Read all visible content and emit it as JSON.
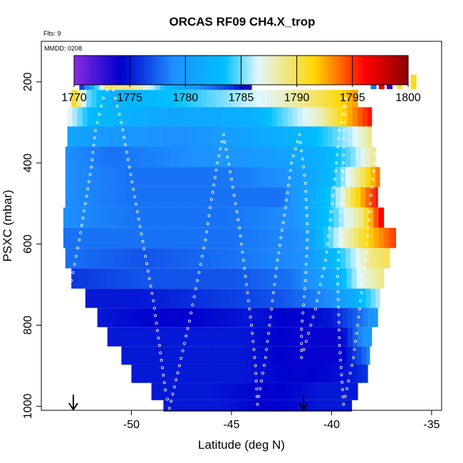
{
  "chart_data": {
    "type": "heatmap",
    "title": "ORCAS RF09 CH4.X_trop",
    "note_flights": "Flts: 9",
    "note_date": "MMDD: 0208",
    "xlabel": "Latitude (deg N)",
    "ylabel": "PSXC (mbar)",
    "xlim": [
      -54.5,
      -34.5
    ],
    "ylim": [
      1010,
      100
    ],
    "x_ticks": [
      -50,
      -45,
      -40,
      -35
    ],
    "x_tick_labels": [
      "-50",
      "-45",
      "-40",
      "-35"
    ],
    "y_ticks": [
      200,
      400,
      600,
      800,
      1000
    ],
    "y_tick_labels": [
      "200",
      "400",
      "600",
      "800",
      "1000"
    ],
    "colorbar": {
      "min": 1770,
      "max": 1800,
      "ticks": [
        1770,
        1775,
        1780,
        1785,
        1790,
        1795,
        1800
      ],
      "tick_labels": [
        "1770",
        "1775",
        "1780",
        "1785",
        "1790",
        "1795",
        "1800"
      ],
      "stops": [
        "#8a2be2",
        "#0000cd",
        "#1e90ff",
        "#00bfff",
        "#e0f7ff",
        "#ffd700",
        "#ff0000",
        "#8b0000"
      ]
    },
    "marker_latitudes": [
      -52.9,
      -41.4
    ],
    "layers": [
      {
        "p": 200,
        "segments": [
          [
            -52.6,
            1775
          ],
          [
            -51.2,
            1790
          ],
          [
            -49.5,
            1788
          ],
          [
            -48.2,
            1783
          ],
          [
            -46.6,
            1779
          ],
          [
            -45.0,
            1776
          ],
          [
            -44.0,
            1773
          ]
        ]
      },
      {
        "p": 240,
        "segments": [
          [
            -53.0,
            1792
          ],
          [
            -52.2,
            1785
          ],
          [
            -51.0,
            1782
          ],
          [
            -47.0,
            1784
          ],
          [
            -43.0,
            1787
          ],
          [
            -40.5,
            1790
          ],
          [
            -38.7,
            1793
          ]
        ]
      },
      {
        "p": 285,
        "segments": [
          [
            -53.2,
            1787
          ],
          [
            -52.0,
            1783
          ],
          [
            -48.0,
            1781
          ],
          [
            -44.0,
            1782
          ],
          [
            -40.5,
            1788
          ],
          [
            -38.0,
            1796
          ]
        ]
      },
      {
        "p": 335,
        "segments": [
          [
            -53.2,
            1781
          ],
          [
            -51.5,
            1780
          ],
          [
            -47.5,
            1779
          ],
          [
            -44.0,
            1781
          ],
          [
            -41.0,
            1783
          ],
          [
            -39.0,
            1786
          ],
          [
            -38.0,
            1789
          ]
        ]
      },
      {
        "p": 385,
        "segments": [
          [
            -53.3,
            1779
          ],
          [
            -51.0,
            1778
          ],
          [
            -47.0,
            1779
          ],
          [
            -43.5,
            1780
          ],
          [
            -40.5,
            1782
          ],
          [
            -39.0,
            1785
          ],
          [
            -37.8,
            1789
          ]
        ]
      },
      {
        "p": 435,
        "segments": [
          [
            -53.3,
            1779
          ],
          [
            -50.0,
            1778
          ],
          [
            -46.0,
            1778
          ],
          [
            -42.5,
            1779
          ],
          [
            -40.0,
            1783
          ],
          [
            -38.6,
            1789
          ],
          [
            -37.6,
            1794
          ]
        ]
      },
      {
        "p": 485,
        "segments": [
          [
            -53.3,
            1779
          ],
          [
            -50.0,
            1778
          ],
          [
            -46.0,
            1778
          ],
          [
            -42.5,
            1778
          ],
          [
            -40.0,
            1784
          ],
          [
            -38.8,
            1791
          ],
          [
            -37.7,
            1796
          ]
        ]
      },
      {
        "p": 535,
        "segments": [
          [
            -53.4,
            1779
          ],
          [
            -49.5,
            1778
          ],
          [
            -45.5,
            1778
          ],
          [
            -42.0,
            1779
          ],
          [
            -40.0,
            1784
          ],
          [
            -38.5,
            1789
          ],
          [
            -37.4,
            1797
          ]
        ]
      },
      {
        "p": 585,
        "segments": [
          [
            -53.4,
            1778
          ],
          [
            -49.5,
            1778
          ],
          [
            -45.0,
            1778
          ],
          [
            -41.5,
            1779
          ],
          [
            -39.5,
            1787
          ],
          [
            -38.0,
            1792
          ],
          [
            -36.8,
            1795
          ]
        ]
      },
      {
        "p": 635,
        "segments": [
          [
            -53.3,
            1778
          ],
          [
            -49.5,
            1777
          ],
          [
            -45.0,
            1778
          ],
          [
            -41.5,
            1779
          ],
          [
            -39.5,
            1784
          ],
          [
            -38.0,
            1789
          ],
          [
            -37.1,
            1790
          ]
        ]
      },
      {
        "p": 685,
        "segments": [
          [
            -53.0,
            1776
          ],
          [
            -49.5,
            1777
          ],
          [
            -45.0,
            1777
          ],
          [
            -42.0,
            1778
          ],
          [
            -40.0,
            1781
          ],
          [
            -38.5,
            1787
          ],
          [
            -37.4,
            1789
          ]
        ]
      },
      {
        "p": 735,
        "segments": [
          [
            -52.3,
            1775
          ],
          [
            -49.5,
            1775
          ],
          [
            -46.0,
            1776
          ],
          [
            -42.5,
            1777
          ],
          [
            -40.0,
            1779
          ],
          [
            -38.5,
            1783
          ],
          [
            -37.6,
            1786
          ]
        ]
      },
      {
        "p": 780,
        "segments": [
          [
            -51.7,
            1775
          ],
          [
            -48.0,
            1774
          ],
          [
            -44.0,
            1775
          ],
          [
            -42.0,
            1774
          ],
          [
            -40.0,
            1775
          ],
          [
            -38.5,
            1778
          ],
          [
            -37.7,
            1780
          ]
        ]
      },
      {
        "p": 830,
        "segments": [
          [
            -51.2,
            1775
          ],
          [
            -47.5,
            1775
          ],
          [
            -44.5,
            1775
          ],
          [
            -42.0,
            1774
          ],
          [
            -39.5,
            1774
          ],
          [
            -38.5,
            1779
          ],
          [
            -38.0,
            1780
          ]
        ]
      },
      {
        "p": 875,
        "segments": [
          [
            -50.5,
            1775
          ],
          [
            -47.5,
            1775
          ],
          [
            -44.5,
            1775
          ],
          [
            -42.0,
            1774
          ],
          [
            -39.5,
            1774
          ],
          [
            -38.5,
            1777
          ],
          [
            -38.1,
            1779
          ]
        ]
      },
      {
        "p": 920,
        "segments": [
          [
            -50.0,
            1775
          ],
          [
            -47.0,
            1775
          ],
          [
            -44.5,
            1775
          ],
          [
            -41.5,
            1774
          ],
          [
            -39.0,
            1775
          ],
          [
            -38.2,
            1776
          ]
        ]
      },
      {
        "p": 965,
        "segments": [
          [
            -49.0,
            1775
          ],
          [
            -46.0,
            1775
          ],
          [
            -43.0,
            1774
          ],
          [
            -40.5,
            1775
          ],
          [
            -39.0,
            1775
          ],
          [
            -38.7,
            1775
          ]
        ]
      },
      {
        "p": 1005,
        "segments": [
          [
            -48.4,
            1775
          ],
          [
            -45.5,
            1775
          ],
          [
            -43.0,
            1774
          ],
          [
            -40.5,
            1775
          ],
          [
            -39.1,
            1775
          ],
          [
            -39.0,
            1775
          ]
        ]
      }
    ],
    "top_right_cells": [
      {
        "lat": -37.9,
        "p": 200,
        "v": 1778
      },
      {
        "lat": -37.5,
        "p": 200,
        "v": 1797
      },
      {
        "lat": -37.1,
        "p": 200,
        "v": 1773
      },
      {
        "lat": -36.6,
        "p": 200,
        "v": 1790
      },
      {
        "lat": -35.9,
        "p": 200,
        "v": 1791
      }
    ],
    "flight_track": [
      [
        -52.8,
        1005
      ],
      [
        -53.2,
        900
      ],
      [
        -53.4,
        780
      ],
      [
        -53.0,
        690
      ],
      [
        -52.6,
        590
      ],
      [
        -52.3,
        500
      ],
      [
        -52.0,
        410
      ],
      [
        -51.8,
        320
      ],
      [
        -51.4,
        240
      ],
      [
        -51.0,
        200
      ],
      [
        -50.5,
        300
      ],
      [
        -50.1,
        410
      ],
      [
        -49.7,
        520
      ],
      [
        -49.3,
        630
      ],
      [
        -48.9,
        740
      ],
      [
        -48.6,
        850
      ],
      [
        -48.3,
        960
      ],
      [
        -48.1,
        1005
      ],
      [
        -47.6,
        900
      ],
      [
        -47.1,
        790
      ],
      [
        -46.7,
        690
      ],
      [
        -46.3,
        590
      ],
      [
        -46.0,
        490
      ],
      [
        -45.7,
        400
      ],
      [
        -45.4,
        330
      ],
      [
        -45.0,
        440
      ],
      [
        -44.6,
        560
      ],
      [
        -44.3,
        680
      ],
      [
        -44.0,
        800
      ],
      [
        -43.8,
        900
      ],
      [
        -43.7,
        995
      ],
      [
        -43.3,
        880
      ],
      [
        -43.0,
        760
      ],
      [
        -42.7,
        640
      ],
      [
        -42.3,
        510
      ],
      [
        -42.0,
        400
      ],
      [
        -41.6,
        330
      ],
      [
        -41.3,
        450
      ],
      [
        -41.2,
        570
      ],
      [
        -41.3,
        690
      ],
      [
        -41.5,
        810
      ],
      [
        -41.5,
        880
      ],
      [
        -40.8,
        760
      ],
      [
        -40.3,
        640
      ],
      [
        -40.0,
        520
      ],
      [
        -39.8,
        420
      ],
      [
        -39.6,
        320
      ],
      [
        -39.3,
        240
      ],
      [
        -39.5,
        500
      ],
      [
        -39.7,
        680
      ],
      [
        -39.6,
        850
      ],
      [
        -39.4,
        995
      ],
      [
        -38.9,
        880
      ],
      [
        -38.6,
        760
      ],
      [
        -38.3,
        640
      ],
      [
        -38.1,
        520
      ],
      [
        -37.9,
        420
      ],
      [
        -37.7,
        320
      ],
      [
        -37.5,
        240
      ]
    ]
  }
}
